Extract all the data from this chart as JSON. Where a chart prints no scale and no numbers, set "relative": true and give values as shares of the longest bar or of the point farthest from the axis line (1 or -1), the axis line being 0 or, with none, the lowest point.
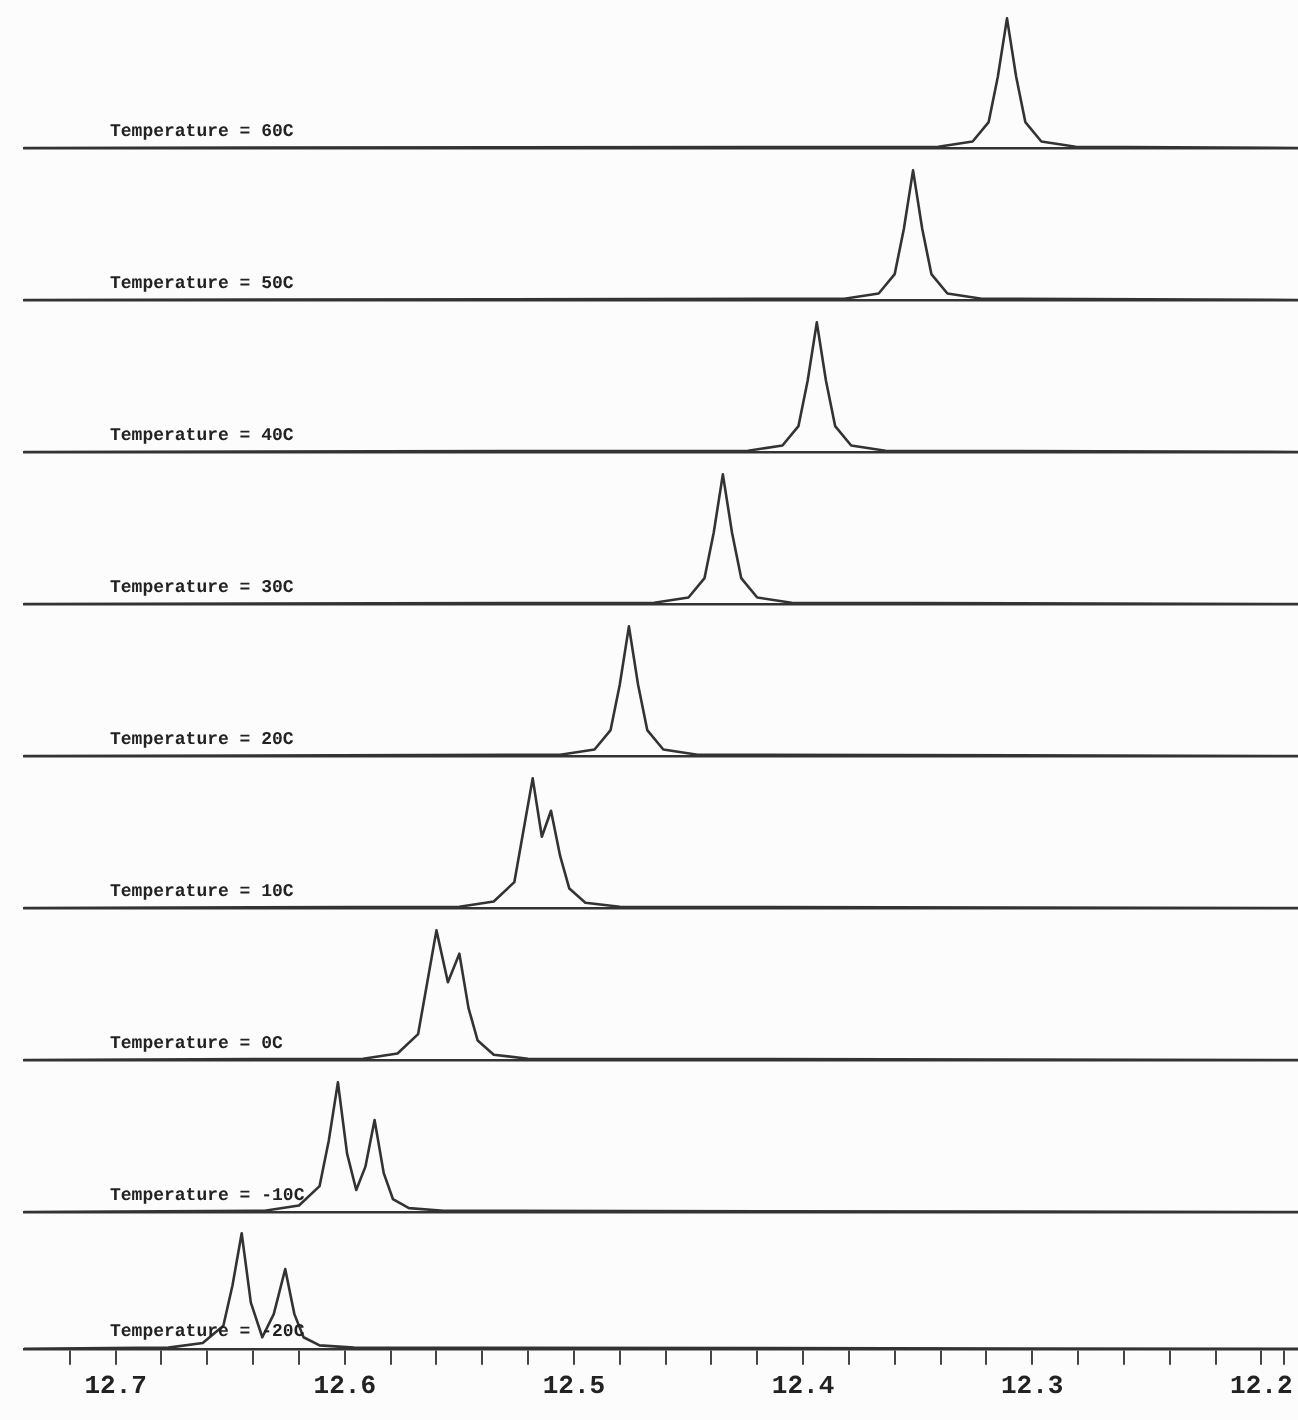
{
  "chart_data": [
    {
      "type": "line",
      "relative": true,
      "marker": "none",
      "grid": false,
      "legend": false,
      "tick_labels": false,
      "xlim": [
        12.74,
        12.184
      ],
      "xticks": [
        12.7,
        12.6,
        12.5,
        12.4,
        12.3,
        12.2
      ],
      "series": [
        {
          "name": "Temperature = 60C",
          "color": "#333333",
          "x": [
            12.74,
            12.341,
            12.326,
            12.319,
            12.315,
            12.311,
            12.307,
            12.303,
            12.296,
            12.281,
            12.184
          ],
          "values": [
            0,
            0.01,
            0.05,
            0.2,
            0.55,
            1,
            0.55,
            0.2,
            0.05,
            0.01,
            0
          ]
        }
      ]
    },
    {
      "type": "line",
      "relative": true,
      "marker": "none",
      "grid": false,
      "legend": false,
      "tick_labels": false,
      "xlim": [
        12.74,
        12.184
      ],
      "xticks": [
        12.7,
        12.6,
        12.5,
        12.4,
        12.3,
        12.2
      ],
      "series": [
        {
          "name": "Temperature = 50C",
          "color": "#333333",
          "x": [
            12.74,
            12.382,
            12.367,
            12.36,
            12.356,
            12.352,
            12.348,
            12.344,
            12.337,
            12.322,
            12.184
          ],
          "values": [
            0,
            0.01,
            0.05,
            0.2,
            0.55,
            1,
            0.55,
            0.2,
            0.05,
            0.01,
            0
          ]
        }
      ]
    },
    {
      "type": "line",
      "relative": true,
      "marker": "none",
      "grid": false,
      "legend": false,
      "tick_labels": false,
      "xlim": [
        12.74,
        12.184
      ],
      "xticks": [
        12.7,
        12.6,
        12.5,
        12.4,
        12.3,
        12.2
      ],
      "series": [
        {
          "name": "Temperature = 40C",
          "color": "#333333",
          "x": [
            12.74,
            12.424,
            12.409,
            12.402,
            12.398,
            12.394,
            12.39,
            12.386,
            12.379,
            12.364,
            12.184
          ],
          "values": [
            0,
            0.01,
            0.05,
            0.2,
            0.55,
            1,
            0.55,
            0.2,
            0.05,
            0.01,
            0
          ]
        }
      ]
    },
    {
      "type": "line",
      "relative": true,
      "marker": "none",
      "grid": false,
      "legend": false,
      "tick_labels": false,
      "xlim": [
        12.74,
        12.184
      ],
      "xticks": [
        12.7,
        12.6,
        12.5,
        12.4,
        12.3,
        12.2
      ],
      "series": [
        {
          "name": "Temperature = 30C",
          "color": "#333333",
          "x": [
            12.74,
            12.465,
            12.45,
            12.443,
            12.439,
            12.435,
            12.431,
            12.427,
            12.42,
            12.405,
            12.184
          ],
          "values": [
            0,
            0.01,
            0.05,
            0.2,
            0.55,
            1,
            0.55,
            0.2,
            0.05,
            0.01,
            0
          ]
        }
      ]
    },
    {
      "type": "line",
      "relative": true,
      "marker": "none",
      "grid": false,
      "legend": false,
      "tick_labels": false,
      "xlim": [
        12.74,
        12.184
      ],
      "xticks": [
        12.7,
        12.6,
        12.5,
        12.4,
        12.3,
        12.2
      ],
      "series": [
        {
          "name": "Temperature = 20C",
          "color": "#333333",
          "x": [
            12.74,
            12.506,
            12.491,
            12.484,
            12.48,
            12.476,
            12.472,
            12.468,
            12.461,
            12.446,
            12.184
          ],
          "values": [
            0,
            0.01,
            0.05,
            0.2,
            0.55,
            1,
            0.55,
            0.2,
            0.05,
            0.01,
            0
          ]
        }
      ]
    },
    {
      "type": "line",
      "relative": true,
      "marker": "none",
      "grid": false,
      "legend": false,
      "tick_labels": false,
      "xlim": [
        12.74,
        12.184
      ],
      "xticks": [
        12.7,
        12.6,
        12.5,
        12.4,
        12.3,
        12.2
      ],
      "series": [
        {
          "name": "Temperature = 10C",
          "color": "#333333",
          "x": [
            12.74,
            12.55,
            12.535,
            12.526,
            12.522,
            12.518,
            12.514,
            12.51,
            12.506,
            12.502,
            12.495,
            12.48,
            12.184
          ],
          "values": [
            0,
            0.01,
            0.05,
            0.2,
            0.6,
            1,
            0.55,
            0.75,
            0.4,
            0.15,
            0.04,
            0.01,
            0
          ]
        }
      ]
    },
    {
      "type": "line",
      "relative": true,
      "marker": "none",
      "grid": false,
      "legend": false,
      "tick_labels": false,
      "xlim": [
        12.74,
        12.184
      ],
      "xticks": [
        12.7,
        12.6,
        12.5,
        12.4,
        12.3,
        12.2
      ],
      "series": [
        {
          "name": "Temperature = 0C",
          "color": "#333333",
          "x": [
            12.74,
            12.592,
            12.577,
            12.568,
            12.564,
            12.56,
            12.555,
            12.55,
            12.546,
            12.542,
            12.535,
            12.52,
            12.184
          ],
          "values": [
            0,
            0.01,
            0.05,
            0.2,
            0.6,
            1,
            0.6,
            0.82,
            0.4,
            0.15,
            0.04,
            0.01,
            0
          ]
        }
      ]
    },
    {
      "type": "line",
      "relative": true,
      "marker": "none",
      "grid": false,
      "legend": false,
      "tick_labels": false,
      "xlim": [
        12.74,
        12.184
      ],
      "xticks": [
        12.7,
        12.6,
        12.5,
        12.4,
        12.3,
        12.2
      ],
      "series": [
        {
          "name": "Temperature = -10C",
          "color": "#333333",
          "x": [
            12.74,
            12.635,
            12.62,
            12.611,
            12.607,
            12.603,
            12.599,
            12.595,
            12.591,
            12.587,
            12.583,
            12.579,
            12.572,
            12.557,
            12.184
          ],
          "values": [
            0,
            0.01,
            0.05,
            0.2,
            0.55,
            1,
            0.45,
            0.17,
            0.35,
            0.71,
            0.3,
            0.1,
            0.03,
            0.01,
            0
          ]
        }
      ]
    },
    {
      "type": "line",
      "relative": true,
      "marker": "none",
      "grid": false,
      "legend": false,
      "tick_labels": "x",
      "xlim": [
        12.74,
        12.184
      ],
      "xticks": [
        {
          "value": 12.72,
          "label": null
        },
        12.7,
        {
          "value": 12.68,
          "label": null
        },
        {
          "value": 12.66,
          "label": null
        },
        {
          "value": 12.64,
          "label": null
        },
        {
          "value": 12.62,
          "label": null
        },
        12.6,
        {
          "value": 12.58,
          "label": null
        },
        {
          "value": 12.56,
          "label": null
        },
        {
          "value": 12.54,
          "label": null
        },
        {
          "value": 12.52,
          "label": null
        },
        12.5,
        {
          "value": 12.48,
          "label": null
        },
        {
          "value": 12.46,
          "label": null
        },
        {
          "value": 12.44,
          "label": null
        },
        {
          "value": 12.42,
          "label": null
        },
        12.4,
        {
          "value": 12.38,
          "label": null
        },
        {
          "value": 12.36,
          "label": null
        },
        {
          "value": 12.34,
          "label": null
        },
        {
          "value": 12.32,
          "label": null
        },
        12.3,
        {
          "value": 12.28,
          "label": null
        },
        {
          "value": 12.26,
          "label": null
        },
        {
          "value": 12.24,
          "label": null
        },
        {
          "value": 12.22,
          "label": null
        },
        12.2,
        {
          "value": 12.19,
          "label": null
        }
      ],
      "series": [
        {
          "name": "Temperature = -20C",
          "color": "#333333",
          "x": [
            12.74,
            12.677,
            12.662,
            12.653,
            12.649,
            12.645,
            12.641,
            12.636,
            12.631,
            12.626,
            12.622,
            12.618,
            12.611,
            12.596,
            12.184
          ],
          "values": [
            0,
            0.01,
            0.05,
            0.2,
            0.55,
            1,
            0.4,
            0.1,
            0.3,
            0.69,
            0.3,
            0.1,
            0.03,
            0.01,
            0
          ]
        }
      ]
    }
  ]
}
